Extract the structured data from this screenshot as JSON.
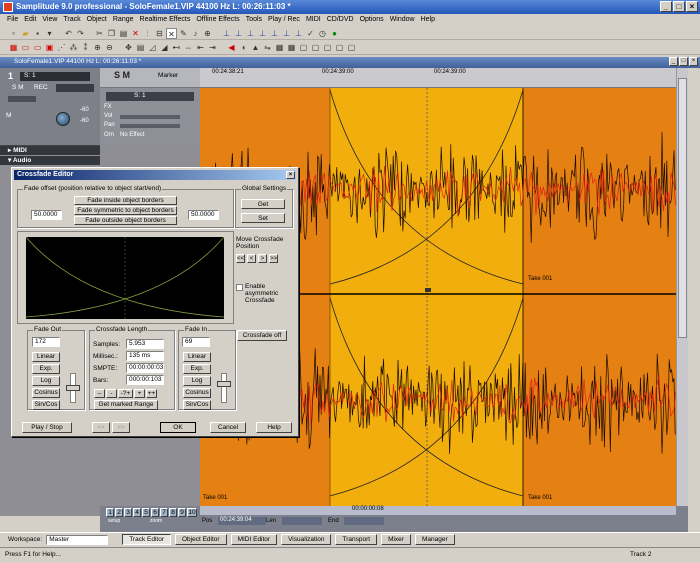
{
  "window": {
    "title": "Samplitude 9.0 professional - SoloFemale1.VIP  44100 Hz L: 00:26:11:03 *",
    "min": "_",
    "max": "□",
    "close": "×"
  },
  "menu": [
    "File",
    "Edit",
    "View",
    "Track",
    "Object",
    "Range",
    "Realtime Effects",
    "Offline Effects",
    "Tools",
    "Play / Rec",
    "MIDI",
    "CD/DVD",
    "Options",
    "Window",
    "Help"
  ],
  "project": {
    "title": "SoloFemale1.VIP   44100 Hz L: 00:26:11:03 *"
  },
  "track": {
    "number": "1",
    "name": "S: 1",
    "sm_labels": "S M",
    "rec": "REC",
    "channel_short": "M",
    "fx": "FX",
    "vol": "Vol",
    "pan": "Pan",
    "orn": "Orn",
    "no_effect": "No Effect",
    "aux1": "-60",
    "aux2": "-60"
  },
  "sections": {
    "midi": "MIDI",
    "audio": "Audio"
  },
  "ruler": {
    "marker": "Marker",
    "t1": "00:24:38:21",
    "t2": "00:24:39:00",
    "t3": "00:24:39:00"
  },
  "take": {
    "label": "Take 001"
  },
  "position": {
    "pos_label": "Pos",
    "pos_value": "00:24:39:04",
    "len_label": "Len",
    "end_label": "End",
    "center_time": "00:00:00:08"
  },
  "pages": {
    "items": [
      "1",
      "2",
      "3",
      "4",
      "5",
      "6",
      "7",
      "8",
      "9",
      "10"
    ],
    "setup": "setup",
    "zoom": "zoom"
  },
  "workspace": {
    "label": "Workspace:",
    "value": "Master",
    "buttons": [
      "Track Editor",
      "Object Editor",
      "MIDI Editor",
      "Visualization",
      "Transport",
      "Mixer",
      "Manager"
    ]
  },
  "status": {
    "text": "Press F1 for Help...",
    "track": "Track 2"
  },
  "dialog": {
    "title": "Crossfade Editor",
    "fade_offset": {
      "label": "Fade offset  (position relative to object start/end)",
      "left_value": "50.0000",
      "right_value": "50.0000",
      "btn_inside": "Fade inside object borders",
      "btn_symmetric": "Fade symmetric to object borders",
      "btn_outside": "Fade outside object borders"
    },
    "global": {
      "label": "Global Settings",
      "get": "Get",
      "set": "Set"
    },
    "move": {
      "label": "Move Crossfade Position",
      "b1": "<<",
      "b2": "<",
      "b3": ">",
      "b4": ">>"
    },
    "asymmetric": {
      "label": "Enable asymmetric Crossfade"
    },
    "fade_out": {
      "label": "Fade Out",
      "value": "172",
      "linear": "Linear",
      "exp": "Exp.",
      "log": "Log",
      "cosinus": "Cosinus",
      "sin_cos": "Sin/Cos"
    },
    "length": {
      "label": "Crossfade Length",
      "samples_label": "Samples:",
      "samples": "5.953",
      "millisec_label": "Millisec.:",
      "millisec": "135 ms",
      "smpte_label": "SMPTE:",
      "smpte": "00:00:00:03",
      "bars_label": "Bars:",
      "bars": "000:00:103",
      "n1": "--",
      "n2": "-",
      "n3": "-?+",
      "n4": "+",
      "n5": "++",
      "get_marked": "Get marked Range"
    },
    "fade_in": {
      "label": "Fade In",
      "value": "69",
      "linear": "Linear",
      "exp": "Exp.",
      "log": "Log",
      "cosinus": "Cosinus",
      "sin_cos": "Sin/Cos"
    },
    "crossfade_off": "Crossfade off",
    "play_stop": "Play / Stop",
    "prev": "<<",
    "next": ">>",
    "ok": "OK",
    "cancel": "Cancel",
    "help": "Help"
  },
  "colors": {
    "orange": "#e58112",
    "yellow": "#f2ae0c",
    "wave_red": "#e02015",
    "dialog_title": "#0a246a"
  }
}
